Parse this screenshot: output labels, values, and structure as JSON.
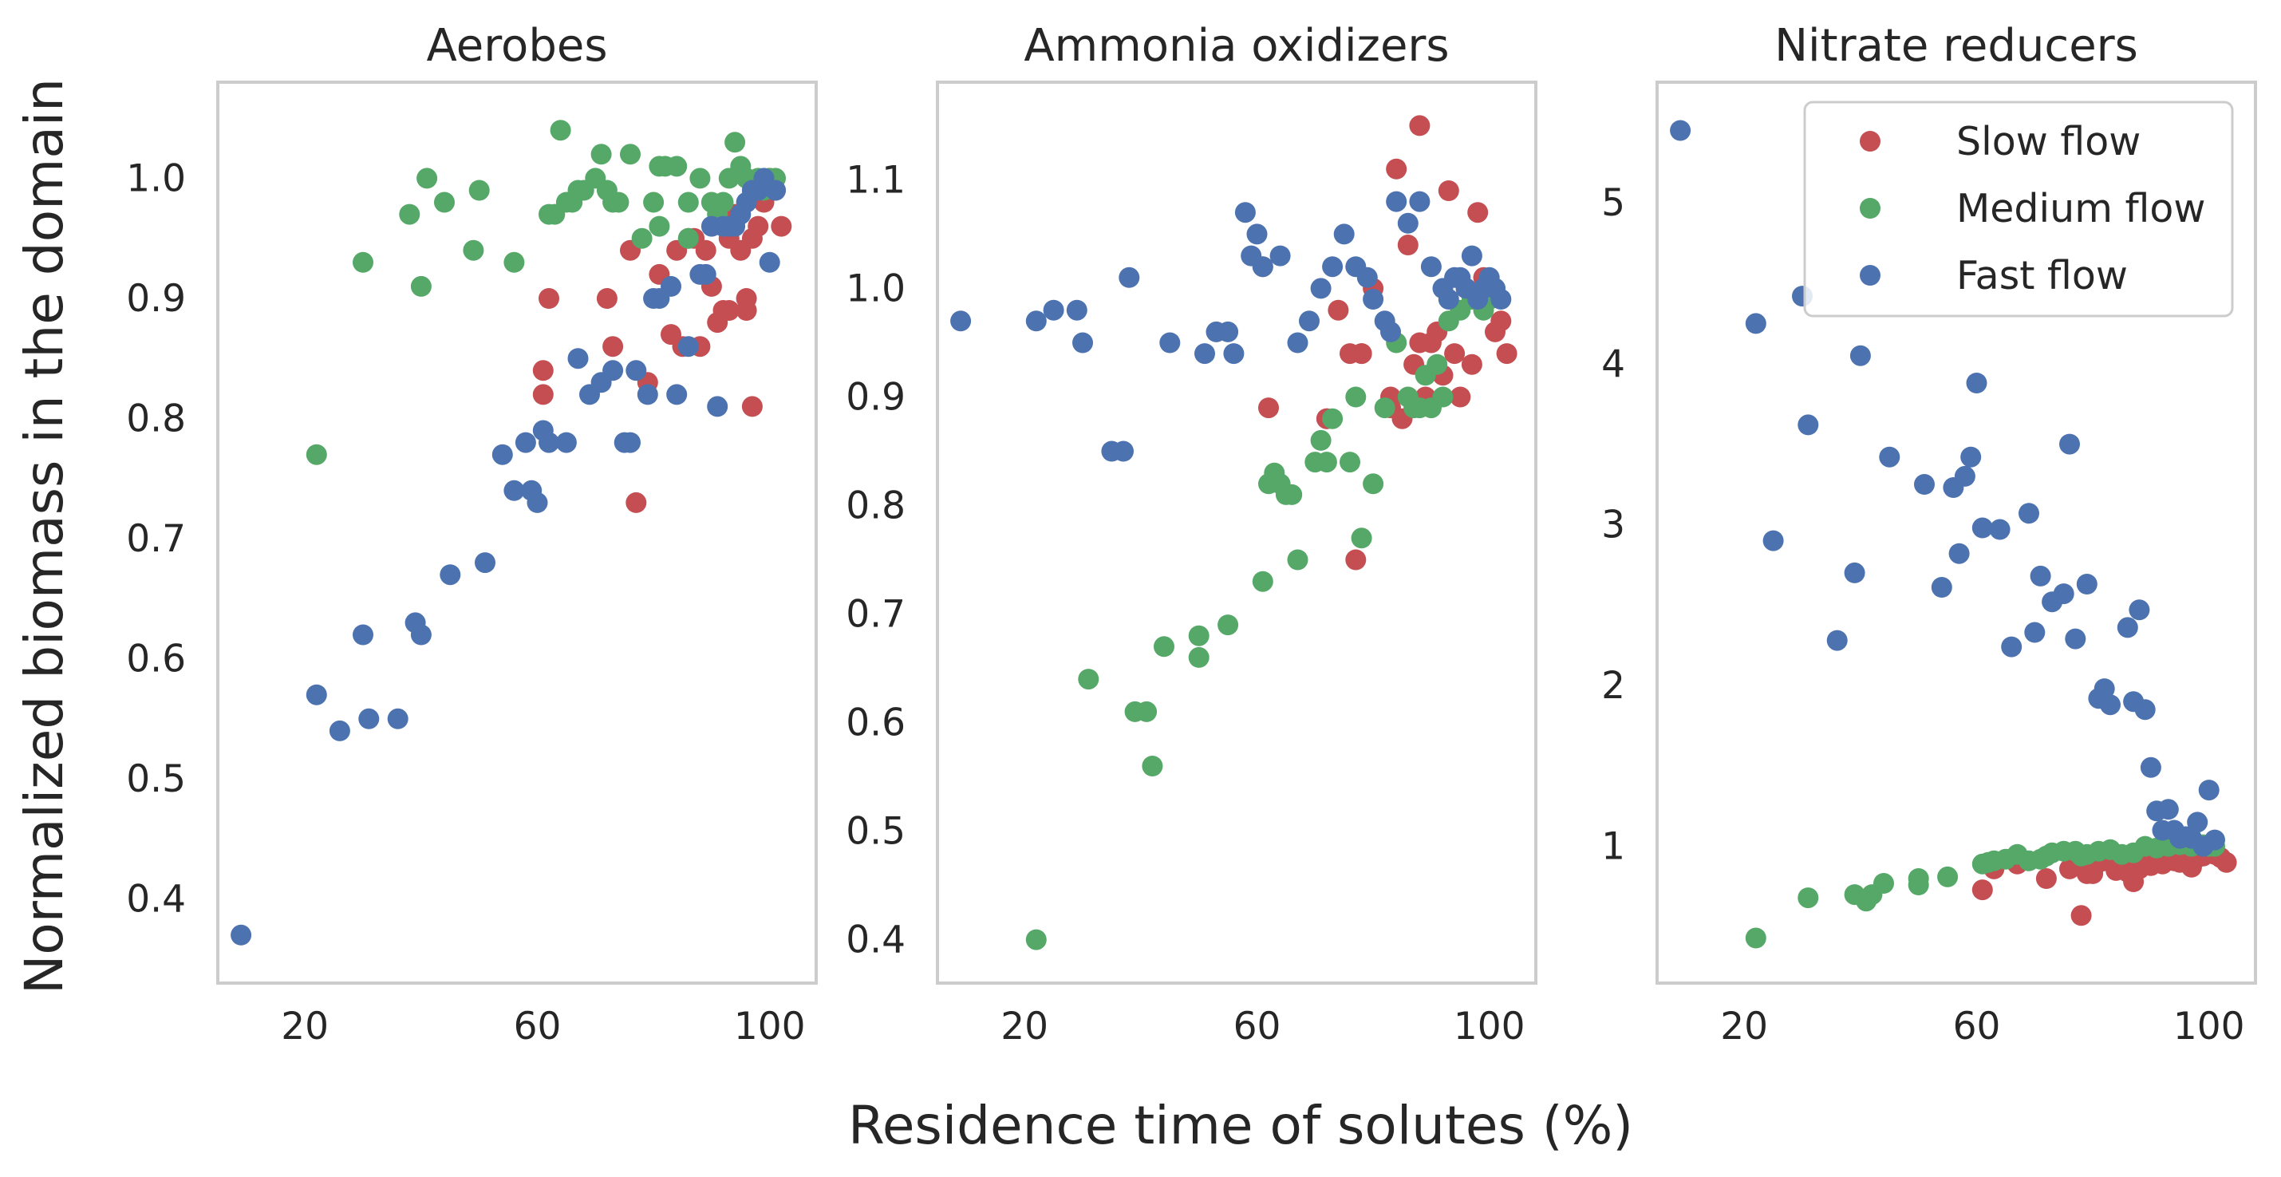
{
  "figure": {
    "ylabel": "Normalized biomass in the domain",
    "xlabel": "Residence time of solutes (%)"
  },
  "legend": {
    "placement": "top-right of third panel",
    "entries": [
      {
        "name": "Slow flow",
        "color": "#c44e52"
      },
      {
        "name": "Medium flow",
        "color": "#55a868"
      },
      {
        "name": "Fast flow",
        "color": "#4c72b0"
      }
    ]
  },
  "chart_data": [
    {
      "type": "scatter",
      "title": "Aerobes",
      "xlim": [
        5,
        108
      ],
      "ylim": [
        0.33,
        1.08
      ],
      "xticks": [
        20,
        60,
        100
      ],
      "xtick_labels": [
        "20",
        "60",
        "100"
      ],
      "yticks": [
        0.4,
        0.5,
        0.6,
        0.7,
        0.8,
        0.9,
        1.0
      ],
      "ytick_labels": [
        "0.4",
        "0.5",
        "0.6",
        "0.7",
        "0.8",
        "0.9",
        "1.0"
      ],
      "grid": false,
      "series": [
        {
          "name": "Slow flow",
          "color": "#c44e52",
          "x": [
            62,
            61,
            61,
            72,
            76,
            79,
            81,
            83,
            84,
            85,
            86,
            87,
            88,
            89,
            90,
            91,
            92,
            93,
            94,
            95,
            96,
            97,
            98,
            99,
            100,
            101,
            102,
            73,
            77,
            97,
            93,
            96
          ],
          "y": [
            0.9,
            0.84,
            0.82,
            0.9,
            0.94,
            0.83,
            0.92,
            0.87,
            0.94,
            0.86,
            0.95,
            0.95,
            0.86,
            0.94,
            0.91,
            0.88,
            0.89,
            0.95,
            0.97,
            0.94,
            0.9,
            0.95,
            0.96,
            0.98,
            1.0,
            0.99,
            0.96,
            0.86,
            0.73,
            0.81,
            0.89,
            0.89
          ]
        },
        {
          "name": "Medium flow",
          "color": "#55a868",
          "x": [
            22,
            30,
            38,
            40,
            41,
            44,
            49,
            50,
            56,
            62,
            64,
            65,
            66,
            67,
            68,
            70,
            71,
            73,
            74,
            76,
            78,
            80,
            81,
            82,
            84,
            86,
            88,
            90,
            91,
            92,
            93,
            94,
            95,
            96,
            97,
            98,
            99,
            100,
            101,
            63,
            72,
            81,
            86
          ],
          "y": [
            0.77,
            0.93,
            0.97,
            0.91,
            1.0,
            0.98,
            0.94,
            0.99,
            0.93,
            0.97,
            1.04,
            0.98,
            0.98,
            0.99,
            0.99,
            1.0,
            1.02,
            0.98,
            0.98,
            1.02,
            0.95,
            0.98,
            1.01,
            1.01,
            1.01,
            0.95,
            1.0,
            0.98,
            0.97,
            0.98,
            1.0,
            1.03,
            1.01,
            1.0,
            0.99,
            1.0,
            0.99,
            1.0,
            1.0,
            0.97,
            0.99,
            0.96,
            0.98
          ]
        },
        {
          "name": "Fast flow",
          "color": "#4c72b0",
          "x": [
            9,
            22,
            26,
            30,
            31,
            36,
            39,
            40,
            45,
            51,
            54,
            56,
            58,
            59,
            60,
            61,
            62,
            65,
            67,
            69,
            71,
            73,
            75,
            77,
            79,
            80,
            81,
            83,
            84,
            86,
            88,
            89,
            90,
            91,
            92,
            93,
            94,
            95,
            96,
            97,
            98,
            99,
            100,
            101,
            76
          ],
          "y": [
            0.37,
            0.57,
            0.54,
            0.62,
            0.55,
            0.55,
            0.63,
            0.62,
            0.67,
            0.68,
            0.77,
            0.74,
            0.78,
            0.74,
            0.73,
            0.79,
            0.78,
            0.78,
            0.85,
            0.82,
            0.83,
            0.84,
            0.78,
            0.84,
            0.82,
            0.9,
            0.9,
            0.91,
            0.82,
            0.86,
            0.92,
            0.92,
            0.96,
            0.81,
            0.96,
            0.96,
            0.96,
            0.97,
            0.98,
            0.99,
            0.99,
            1.0,
            0.93,
            0.99,
            0.78
          ]
        }
      ]
    },
    {
      "type": "scatter",
      "title": "Ammonia oxidizers",
      "xlim": [
        5,
        108
      ],
      "ylim": [
        0.36,
        1.19
      ],
      "xticks": [
        20,
        60,
        100
      ],
      "xtick_labels": [
        "20",
        "60",
        "100"
      ],
      "yticks": [
        0.4,
        0.5,
        0.6,
        0.7,
        0.8,
        0.9,
        1.0,
        1.1
      ],
      "ytick_labels": [
        "0.4",
        "0.5",
        "0.6",
        "0.7",
        "0.8",
        "0.9",
        "1.0",
        "1.1"
      ],
      "grid": false,
      "series": [
        {
          "name": "Slow flow",
          "color": "#c44e52",
          "x": [
            61,
            62,
            72,
            74,
            76,
            77,
            78,
            80,
            83,
            84,
            85,
            86,
            87,
            88,
            89,
            90,
            91,
            92,
            93,
            94,
            95,
            96,
            97,
            98,
            99,
            100,
            101,
            102,
            103,
            72,
            78,
            83,
            88
          ],
          "y": [
            1.02,
            0.89,
            0.88,
            0.98,
            0.94,
            0.75,
            0.94,
            1.0,
            0.9,
            1.11,
            0.88,
            1.04,
            0.93,
            1.15,
            0.9,
            0.95,
            0.96,
            0.92,
            1.09,
            0.94,
            0.9,
            1.0,
            0.93,
            1.07,
            1.01,
            0.99,
            0.96,
            0.97,
            0.94,
            0.88,
            0.94,
            0.89,
            0.95
          ]
        },
        {
          "name": "Medium flow",
          "color": "#55a868",
          "x": [
            22,
            31,
            39,
            41,
            42,
            44,
            50,
            50,
            55,
            61,
            62,
            63,
            64,
            65,
            66,
            67,
            71,
            72,
            73,
            76,
            77,
            78,
            80,
            82,
            84,
            86,
            87,
            88,
            89,
            90,
            91,
            92,
            93,
            95,
            97,
            99,
            101,
            100,
            70
          ],
          "y": [
            0.4,
            0.64,
            0.61,
            0.61,
            0.56,
            0.67,
            0.68,
            0.66,
            0.69,
            0.73,
            0.82,
            0.83,
            0.82,
            0.81,
            0.81,
            0.75,
            0.86,
            0.84,
            0.88,
            0.84,
            0.9,
            0.77,
            0.82,
            0.89,
            0.95,
            0.9,
            0.89,
            0.89,
            0.92,
            0.89,
            0.93,
            0.9,
            0.97,
            0.98,
            0.99,
            0.98,
            1.0,
            0.99,
            0.84
          ]
        },
        {
          "name": "Fast flow",
          "color": "#4c72b0",
          "x": [
            9,
            22,
            25,
            29,
            30,
            35,
            37,
            38,
            45,
            51,
            53,
            55,
            56,
            58,
            59,
            60,
            61,
            64,
            67,
            69,
            71,
            73,
            75,
            77,
            79,
            80,
            82,
            83,
            84,
            86,
            88,
            90,
            92,
            93,
            94,
            95,
            96,
            97,
            98,
            99,
            100,
            101,
            102
          ],
          "y": [
            0.97,
            0.97,
            0.98,
            0.98,
            0.95,
            0.85,
            0.85,
            1.01,
            0.95,
            0.94,
            0.96,
            0.96,
            0.94,
            1.07,
            1.03,
            1.05,
            1.02,
            1.03,
            0.95,
            0.97,
            1.0,
            1.02,
            1.05,
            1.02,
            1.01,
            0.99,
            0.97,
            0.96,
            1.08,
            1.06,
            1.08,
            1.02,
            1.0,
            0.99,
            1.01,
            1.01,
            1.0,
            1.03,
            0.99,
            1.0,
            1.01,
            1.0,
            0.99
          ]
        }
      ]
    },
    {
      "type": "scatter",
      "title": "Nitrate reducers",
      "xlim": [
        5,
        108
      ],
      "ylim": [
        0.15,
        5.75
      ],
      "xticks": [
        20,
        60,
        100
      ],
      "xtick_labels": [
        "20",
        "60",
        "100"
      ],
      "yticks": [
        1,
        2,
        3,
        4,
        5
      ],
      "ytick_labels": [
        "1",
        "2",
        "3",
        "4",
        "5"
      ],
      "grid": false,
      "series": [
        {
          "name": "Slow flow",
          "color": "#c44e52",
          "x": [
            61,
            63,
            67,
            72,
            76,
            78,
            80,
            81,
            82,
            84,
            86,
            87,
            88,
            89,
            90,
            91,
            92,
            93,
            94,
            95,
            96,
            97,
            98,
            99,
            100,
            101,
            102,
            103,
            79,
            85
          ],
          "y": [
            0.73,
            0.86,
            0.89,
            0.8,
            0.86,
            0.57,
            0.83,
            0.9,
            0.91,
            0.85,
            0.84,
            0.78,
            0.86,
            0.91,
            0.88,
            0.92,
            0.89,
            0.94,
            0.91,
            0.9,
            0.93,
            0.87,
            0.93,
            0.94,
            0.97,
            0.95,
            0.93,
            0.9,
            0.83,
            0.88
          ]
        },
        {
          "name": "Medium flow",
          "color": "#55a868",
          "x": [
            22,
            31,
            39,
            41,
            42,
            44,
            50,
            50,
            55,
            61,
            62,
            63,
            65,
            67,
            69,
            71,
            73,
            75,
            77,
            79,
            81,
            83,
            85,
            87,
            89,
            91,
            93,
            95,
            97,
            99,
            100,
            101,
            72,
            78
          ],
          "y": [
            0.43,
            0.68,
            0.7,
            0.66,
            0.7,
            0.77,
            0.8,
            0.76,
            0.81,
            0.89,
            0.9,
            0.91,
            0.92,
            0.95,
            0.91,
            0.92,
            0.96,
            0.97,
            0.97,
            0.95,
            0.97,
            0.98,
            0.95,
            0.96,
            1.0,
            0.99,
            1.0,
            1.01,
            1.0,
            1.01,
            1.0,
            1.0,
            0.94,
            0.94
          ]
        },
        {
          "name": "Fast flow",
          "color": "#4c72b0",
          "x": [
            9,
            22,
            25,
            30,
            31,
            36,
            39,
            40,
            45,
            51,
            54,
            56,
            57,
            58,
            59,
            60,
            61,
            64,
            66,
            69,
            70,
            71,
            73,
            75,
            76,
            77,
            79,
            81,
            82,
            83,
            86,
            87,
            88,
            89,
            90,
            91,
            92,
            93,
            94,
            95,
            96,
            97,
            98,
            99,
            100,
            101
          ],
          "y": [
            5.45,
            4.25,
            2.9,
            4.42,
            3.62,
            2.28,
            2.7,
            4.05,
            3.42,
            3.25,
            2.61,
            3.23,
            2.82,
            3.3,
            3.42,
            3.88,
            2.98,
            2.97,
            2.24,
            3.07,
            2.33,
            2.68,
            2.52,
            2.57,
            3.5,
            2.29,
            2.63,
            1.92,
            1.98,
            1.88,
            2.36,
            1.9,
            2.47,
            1.85,
            1.49,
            1.22,
            1.1,
            1.23,
            1.1,
            1.05,
            1.06,
            1.05,
            1.15,
            1.0,
            1.35,
            1.04
          ]
        }
      ]
    }
  ]
}
